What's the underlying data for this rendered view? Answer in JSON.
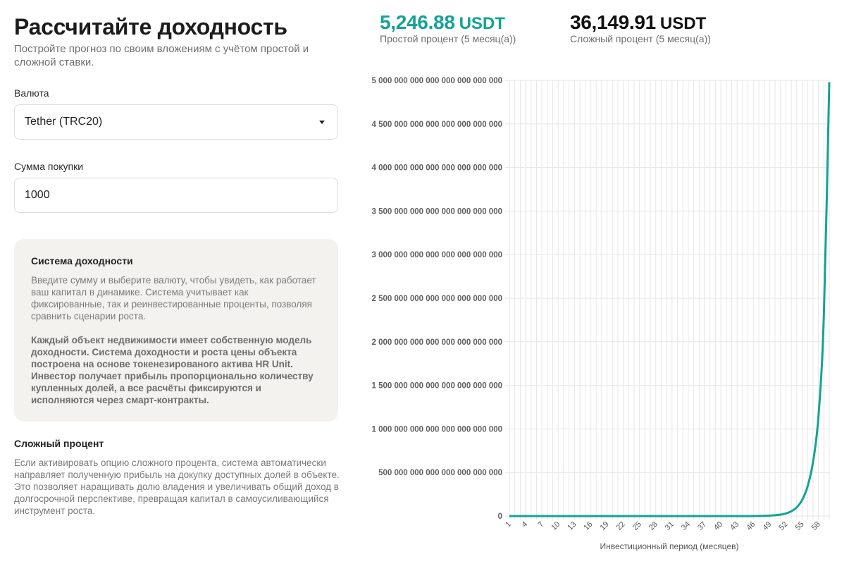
{
  "header": {
    "title": "Рассчитайте доходность",
    "subtitle": "Постройте прогноз по своим вложениям с учётом простой и сложной ставки."
  },
  "form": {
    "currency_label": "Валюта",
    "currency_value": "Tether (TRC20)",
    "amount_label": "Сумма покупки",
    "amount_value": "1000"
  },
  "info_card": {
    "title": "Система доходности",
    "text": "Введите сумму и выберите валюту, чтобы увидеть, как работает ваш капитал в динамике. Система учитывает как фиксированные, так и реинвестированные проценты, позволяя сравнить сценарии роста.",
    "bold_text": "Каждый объект недвижимости имеет собственную модель доходности. Система доходности и роста цены объекта построена на основе токенезированого актива HR Unit. Инвестор получает прибыль пропорционально количеству купленных долей, а все расчёты фиксируются и исполняются через смарт-контракты."
  },
  "compound": {
    "title": "Сложный процент",
    "text": "Если активировать опцию сложного процента, система автоматически направляет полученную прибыль на докупку доступных долей в объекте. Это позволяет наращивать долю владения и увеличивать общий доход в долгосрочной перспективе, превращая капитал в самоусиливающийся инструмент роста."
  },
  "stats": {
    "simple": {
      "value": "5,246.88",
      "unit": "USDT",
      "label": "Простой процент (5 месяц(а))",
      "color": "#14a394"
    },
    "compound": {
      "value": "36,149.91",
      "unit": "USDT",
      "label": "Сложный процент (5 месяц(а))",
      "color": "#111111"
    }
  },
  "chart_data": {
    "type": "line",
    "xlabel": "Инвестиционный период (месяцев)",
    "ylabel": "",
    "x_range": [
      1,
      60
    ],
    "x_ticks": [
      1,
      4,
      7,
      10,
      13,
      16,
      19,
      22,
      25,
      28,
      31,
      34,
      37,
      40,
      43,
      46,
      49,
      52,
      55,
      58
    ],
    "ylim": [
      0,
      5000000000000000000000000
    ],
    "y_ticks": [
      0,
      500000000000000000000000,
      1000000000000000000000000,
      1500000000000000000000000,
      2000000000000000000000000,
      2500000000000000000000000,
      3000000000000000000000000,
      3500000000000000000000000,
      4000000000000000000000000,
      4500000000000000000000000,
      5000000000000000000000000
    ],
    "y_tick_labels": [
      "0",
      "500 000 000 000 000 000 000 000",
      "1 000 000 000 000 000 000 000 000",
      "1 500 000 000 000 000 000 000 000",
      "2 000 000 000 000 000 000 000 000",
      "2 500 000 000 000 000 000 000 000",
      "3 000 000 000 000 000 000 000 000",
      "3 500 000 000 000 000 000 000 000",
      "4 000 000 000 000 000 000 000 000",
      "4 500 000 000 000 000 000 000 000",
      "5 000 000 000 000 000 000 000 000"
    ],
    "grid": true,
    "series": [
      {
        "color": "#14a394",
        "x": [
          1,
          10,
          20,
          30,
          40,
          45,
          48,
          50,
          51,
          52,
          53,
          54,
          55,
          56,
          57,
          58,
          59,
          60
        ],
        "values": [
          0,
          0,
          0,
          0,
          0,
          0,
          3000000000000000000000,
          9000000000000000000000,
          16000000000000000000000,
          30000000000000000000000,
          55000000000000000000000,
          100000000000000000000000,
          185000000000000000000000,
          340000000000000000000000,
          620000000000000000000000,
          1140000000000000000000000,
          2300000000000000000000000,
          4980000000000000000000000
        ]
      }
    ]
  }
}
